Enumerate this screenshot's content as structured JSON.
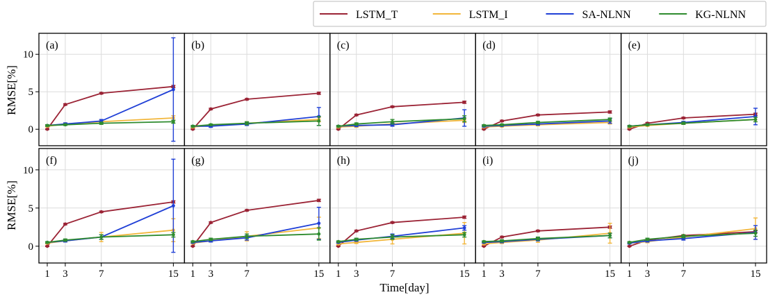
{
  "chart_data": {
    "type": "line",
    "xlabel": "Time[day]",
    "ylabel": "RMSE[%]",
    "x": [
      1,
      3,
      7,
      15
    ],
    "xticks": [
      "1",
      "3",
      "7",
      "15"
    ],
    "ylim": [
      -2.2,
      12.8
    ],
    "yticks": [
      0,
      5,
      10
    ],
    "grid": true,
    "legend_position": "top-right",
    "legend": [
      {
        "name": "LSTM_T",
        "color": "#9b2335"
      },
      {
        "name": "LSTM_I",
        "color": "#f2b63a"
      },
      {
        "name": "SA-NLNN",
        "color": "#1f3fd6"
      },
      {
        "name": "KG-NLNN",
        "color": "#2e8b2e"
      }
    ],
    "panels": [
      {
        "label": "(a)",
        "series": [
          {
            "name": "LSTM_T",
            "values": [
              0.0,
              3.3,
              4.8,
              5.7
            ],
            "errors": [
              0.05,
              0.1,
              0.1,
              0.15
            ]
          },
          {
            "name": "LSTM_I",
            "values": [
              0.4,
              0.7,
              1.0,
              1.5
            ],
            "errors": [
              0.1,
              0.15,
              0.2,
              0.3
            ]
          },
          {
            "name": "SA-NLNN",
            "values": [
              0.5,
              0.7,
              1.1,
              5.3
            ],
            "errors": [
              0.1,
              0.15,
              0.2,
              6.9
            ]
          },
          {
            "name": "KG-NLNN",
            "values": [
              0.5,
              0.6,
              0.8,
              1.0
            ],
            "errors": [
              0.1,
              0.1,
              0.15,
              0.2
            ]
          }
        ]
      },
      {
        "label": "(b)",
        "series": [
          {
            "name": "LSTM_T",
            "values": [
              0.0,
              2.7,
              4.0,
              4.8
            ],
            "errors": [
              0.05,
              0.1,
              0.1,
              0.15
            ]
          },
          {
            "name": "LSTM_I",
            "values": [
              0.3,
              0.5,
              0.8,
              1.3
            ],
            "errors": [
              0.1,
              0.15,
              0.2,
              0.3
            ]
          },
          {
            "name": "SA-NLNN",
            "values": [
              0.4,
              0.4,
              0.7,
              1.7
            ],
            "errors": [
              0.1,
              0.15,
              0.2,
              1.2
            ]
          },
          {
            "name": "KG-NLNN",
            "values": [
              0.4,
              0.6,
              0.8,
              1.1
            ],
            "errors": [
              0.1,
              0.1,
              0.2,
              0.6
            ]
          }
        ]
      },
      {
        "label": "(c)",
        "series": [
          {
            "name": "LSTM_T",
            "values": [
              0.0,
              1.9,
              3.0,
              3.6
            ],
            "errors": [
              0.05,
              0.1,
              0.1,
              0.15
            ]
          },
          {
            "name": "LSTM_I",
            "values": [
              0.3,
              0.4,
              0.7,
              1.2
            ],
            "errors": [
              0.1,
              0.15,
              0.2,
              0.3
            ]
          },
          {
            "name": "SA-NLNN",
            "values": [
              0.4,
              0.5,
              0.6,
              1.5
            ],
            "errors": [
              0.1,
              0.15,
              0.2,
              1.1
            ]
          },
          {
            "name": "KG-NLNN",
            "values": [
              0.4,
              0.7,
              1.0,
              1.4
            ],
            "errors": [
              0.1,
              0.15,
              0.3,
              0.4
            ]
          }
        ]
      },
      {
        "label": "(d)",
        "series": [
          {
            "name": "LSTM_T",
            "values": [
              0.0,
              1.1,
              1.9,
              2.3
            ],
            "errors": [
              0.05,
              0.1,
              0.1,
              0.15
            ]
          },
          {
            "name": "LSTM_I",
            "values": [
              0.3,
              0.4,
              0.6,
              0.9
            ],
            "errors": [
              0.1,
              0.1,
              0.15,
              0.2
            ]
          },
          {
            "name": "SA-NLNN",
            "values": [
              0.4,
              0.5,
              0.7,
              1.1
            ],
            "errors": [
              0.1,
              0.1,
              0.15,
              0.3
            ]
          },
          {
            "name": "KG-NLNN",
            "values": [
              0.5,
              0.6,
              0.9,
              1.3
            ],
            "errors": [
              0.1,
              0.1,
              0.15,
              0.2
            ]
          }
        ]
      },
      {
        "label": "(e)",
        "series": [
          {
            "name": "LSTM_T",
            "values": [
              0.0,
              0.8,
              1.5,
              2.0
            ],
            "errors": [
              0.05,
              0.1,
              0.1,
              0.15
            ]
          },
          {
            "name": "LSTM_I",
            "values": [
              0.3,
              0.5,
              0.8,
              1.3
            ],
            "errors": [
              0.1,
              0.1,
              0.15,
              0.3
            ]
          },
          {
            "name": "SA-NLNN",
            "values": [
              0.4,
              0.6,
              0.9,
              1.7
            ],
            "errors": [
              0.1,
              0.1,
              0.15,
              1.1
            ]
          },
          {
            "name": "KG-NLNN",
            "values": [
              0.4,
              0.6,
              0.8,
              1.3
            ],
            "errors": [
              0.1,
              0.1,
              0.15,
              0.3
            ]
          }
        ]
      },
      {
        "label": "(f)",
        "series": [
          {
            "name": "LSTM_T",
            "values": [
              0.0,
              2.9,
              4.5,
              5.8
            ],
            "errors": [
              0.05,
              0.1,
              0.1,
              0.15
            ]
          },
          {
            "name": "LSTM_I",
            "values": [
              0.4,
              0.7,
              1.2,
              2.1
            ],
            "errors": [
              0.1,
              0.15,
              0.6,
              1.5
            ]
          },
          {
            "name": "SA-NLNN",
            "values": [
              0.5,
              0.7,
              1.2,
              5.3
            ],
            "errors": [
              0.1,
              0.15,
              0.3,
              6.1
            ]
          },
          {
            "name": "KG-NLNN",
            "values": [
              0.5,
              0.8,
              1.2,
              1.5
            ],
            "errors": [
              0.1,
              0.15,
              0.3,
              0.3
            ]
          }
        ]
      },
      {
        "label": "(g)",
        "series": [
          {
            "name": "LSTM_T",
            "values": [
              0.0,
              3.1,
              4.7,
              6.0
            ],
            "errors": [
              0.05,
              0.1,
              0.1,
              0.15
            ]
          },
          {
            "name": "LSTM_I",
            "values": [
              0.4,
              0.7,
              1.3,
              2.4
            ],
            "errors": [
              0.1,
              0.15,
              0.6,
              1.4
            ]
          },
          {
            "name": "SA-NLNN",
            "values": [
              0.5,
              0.7,
              1.1,
              3.0
            ],
            "errors": [
              0.1,
              0.15,
              0.3,
              2.1
            ]
          },
          {
            "name": "KG-NLNN",
            "values": [
              0.6,
              0.9,
              1.3,
              1.6
            ],
            "errors": [
              0.1,
              0.15,
              0.3,
              0.8
            ]
          }
        ]
      },
      {
        "label": "(h)",
        "series": [
          {
            "name": "LSTM_T",
            "values": [
              0.0,
              2.0,
              3.1,
              3.8
            ],
            "errors": [
              0.05,
              0.1,
              0.1,
              0.15
            ]
          },
          {
            "name": "LSTM_I",
            "values": [
              0.3,
              0.5,
              0.9,
              1.7
            ],
            "errors": [
              0.1,
              0.15,
              0.6,
              1.4
            ]
          },
          {
            "name": "SA-NLNN",
            "values": [
              0.5,
              0.8,
              1.3,
              2.4
            ],
            "errors": [
              0.1,
              0.15,
              0.3,
              0.3
            ]
          },
          {
            "name": "KG-NLNN",
            "values": [
              0.6,
              0.9,
              1.2,
              1.5
            ],
            "errors": [
              0.1,
              0.15,
              0.3,
              0.3
            ]
          }
        ]
      },
      {
        "label": "(i)",
        "series": [
          {
            "name": "LSTM_T",
            "values": [
              0.0,
              1.2,
              2.0,
              2.5
            ],
            "errors": [
              0.05,
              0.1,
              0.1,
              0.15
            ]
          },
          {
            "name": "LSTM_I",
            "values": [
              0.3,
              0.5,
              0.8,
              1.7
            ],
            "errors": [
              0.1,
              0.15,
              0.3,
              1.3
            ]
          },
          {
            "name": "SA-NLNN",
            "values": [
              0.5,
              0.6,
              0.9,
              1.4
            ],
            "errors": [
              0.1,
              0.15,
              0.2,
              0.3
            ]
          },
          {
            "name": "KG-NLNN",
            "values": [
              0.6,
              0.7,
              1.0,
              1.4
            ],
            "errors": [
              0.1,
              0.15,
              0.2,
              0.3
            ]
          }
        ]
      },
      {
        "label": "(j)",
        "series": [
          {
            "name": "LSTM_T",
            "values": [
              0.0,
              0.8,
              1.4,
              1.9
            ],
            "errors": [
              0.05,
              0.1,
              0.1,
              0.15
            ]
          },
          {
            "name": "LSTM_I",
            "values": [
              0.4,
              0.6,
              1.2,
              2.3
            ],
            "errors": [
              0.1,
              0.15,
              0.3,
              1.4
            ]
          },
          {
            "name": "SA-NLNN",
            "values": [
              0.4,
              0.7,
              1.0,
              1.8
            ],
            "errors": [
              0.1,
              0.15,
              0.2,
              0.9
            ]
          },
          {
            "name": "KG-NLNN",
            "values": [
              0.5,
              0.9,
              1.3,
              1.7
            ],
            "errors": [
              0.1,
              0.15,
              0.2,
              0.4
            ]
          }
        ]
      }
    ]
  }
}
